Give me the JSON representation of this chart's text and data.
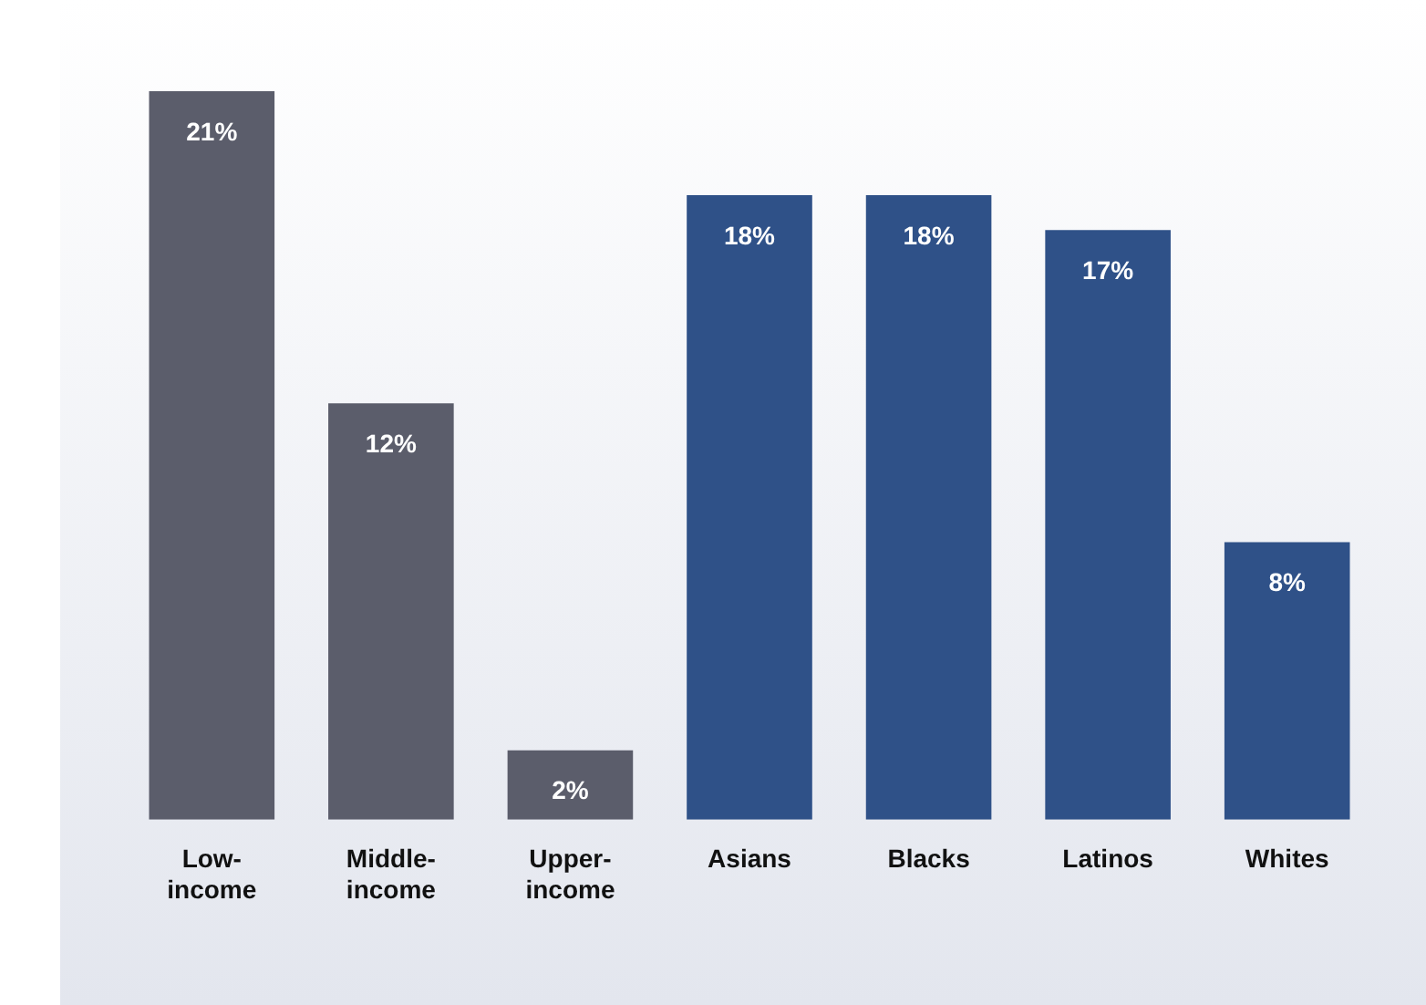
{
  "chart_data": {
    "type": "bar",
    "categories": [
      "Low-income",
      "Middle-income",
      "Upper-income",
      "Asians",
      "Blacks",
      "Latinos",
      "Whites"
    ],
    "values": [
      21,
      12,
      2,
      18,
      18,
      17,
      8
    ],
    "colors": [
      "#5b5d6b",
      "#5b5d6b",
      "#5b5d6b",
      "#2f5188",
      "#2f5188",
      "#2f5188",
      "#2f5188"
    ],
    "data_labels": true,
    "value_labels": [
      "21%",
      "12%",
      "2%",
      "18%",
      "18%",
      "17%",
      "8%"
    ],
    "grid": false,
    "legend": false
  }
}
